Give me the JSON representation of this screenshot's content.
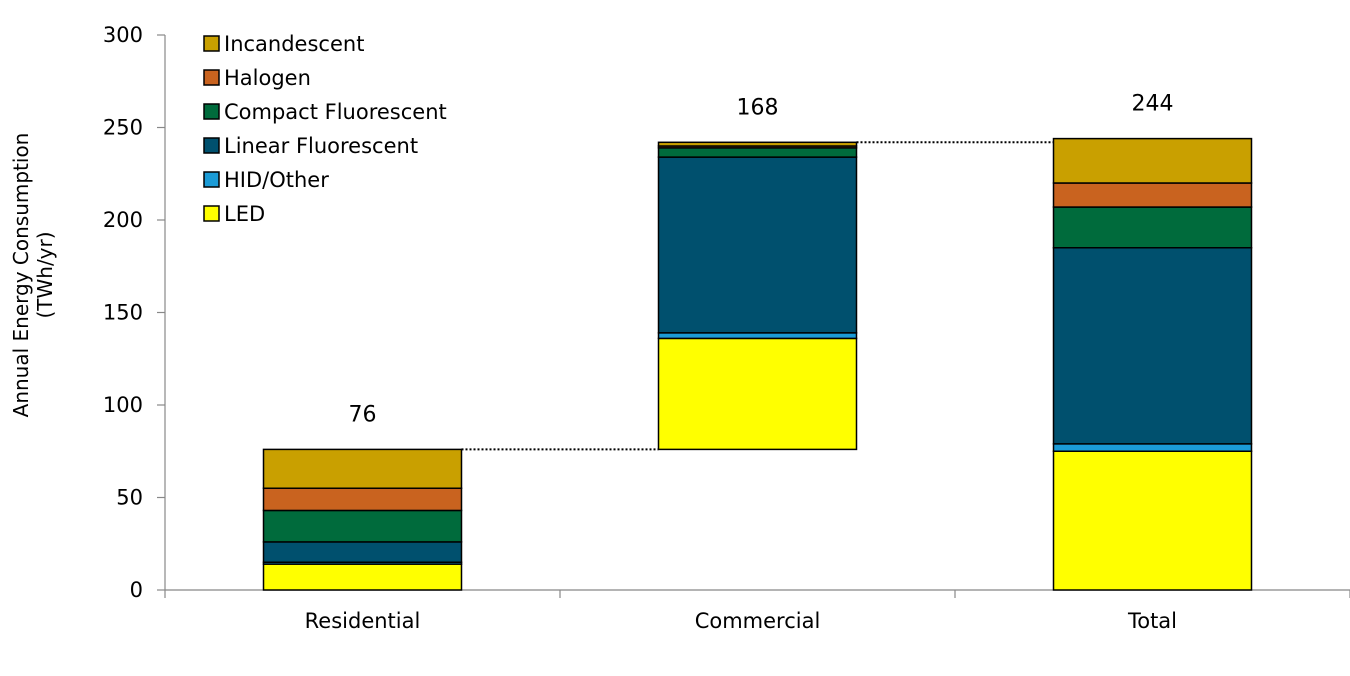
{
  "chart_data": {
    "type": "bar",
    "variant": "waterfall-stacked",
    "title": "",
    "xlabel": "",
    "ylabel_lines": [
      "Annual Energy Consumption",
      "(TWh/yr)"
    ],
    "ylim": [
      0,
      300
    ],
    "yticks": [
      0,
      50,
      100,
      150,
      200,
      250,
      300
    ],
    "grid": false,
    "legend_position": "top-left",
    "categories": [
      "Residential",
      "Commercial",
      "Total"
    ],
    "base": [
      0,
      76,
      0
    ],
    "totals": [
      "76",
      "168",
      "244"
    ],
    "series": [
      {
        "name": "LED",
        "color": "#FFFF00",
        "values": [
          14,
          60,
          75
        ]
      },
      {
        "name": "HID/Other",
        "color": "#1B9BD6",
        "values": [
          1,
          3,
          4
        ]
      },
      {
        "name": "Linear Fluorescent",
        "color": "#00506E",
        "values": [
          11,
          95,
          106
        ]
      },
      {
        "name": "Compact Fluorescent",
        "color": "#006B3C",
        "values": [
          17,
          5,
          22
        ]
      },
      {
        "name": "Halogen",
        "color": "#C9631F",
        "values": [
          12,
          1,
          13
        ]
      },
      {
        "name": "Incandescent",
        "color": "#C9A000",
        "values": [
          21,
          2,
          24
        ]
      }
    ],
    "legend_order": [
      "Incandescent",
      "Halogen",
      "Compact Fluorescent",
      "Linear Fluorescent",
      "HID/Other",
      "LED"
    ]
  }
}
